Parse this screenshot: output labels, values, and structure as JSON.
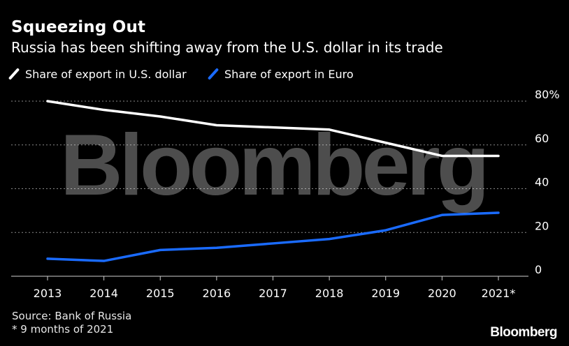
{
  "header": {
    "title": "Squeezing Out",
    "subtitle": "Russia has been shifting away from the U.S. dollar in its trade"
  },
  "legend": {
    "usd_label": "Share of export in U.S. dollar",
    "eur_label": "Share of export in Euro"
  },
  "watermark": "Bloomberg",
  "footer": {
    "source": "Source: Bank of Russia",
    "note": "* 9 months of 2021",
    "brand": "Bloomberg"
  },
  "colors": {
    "background": "#000000",
    "usd_line": "#ffffff",
    "eur_line": "#1a6bff",
    "grid": "#8a8a8a"
  },
  "chart_data": {
    "type": "line",
    "x": [
      "2013",
      "2014",
      "2015",
      "2016",
      "2017",
      "2018",
      "2019",
      "2020",
      "2021*"
    ],
    "y_ticks": [
      "0",
      "20",
      "40",
      "60",
      "80%"
    ],
    "ylim": [
      0,
      80
    ],
    "grid": true,
    "legend_position": "top-left",
    "series": [
      {
        "name": "Share of export in U.S. dollar",
        "color": "#ffffff",
        "values": [
          80,
          76,
          73,
          69,
          68,
          67,
          61,
          55,
          55
        ]
      },
      {
        "name": "Share of export in Euro",
        "color": "#1a6bff",
        "values": [
          8,
          7,
          12,
          13,
          15,
          17,
          21,
          28,
          29
        ]
      }
    ]
  }
}
